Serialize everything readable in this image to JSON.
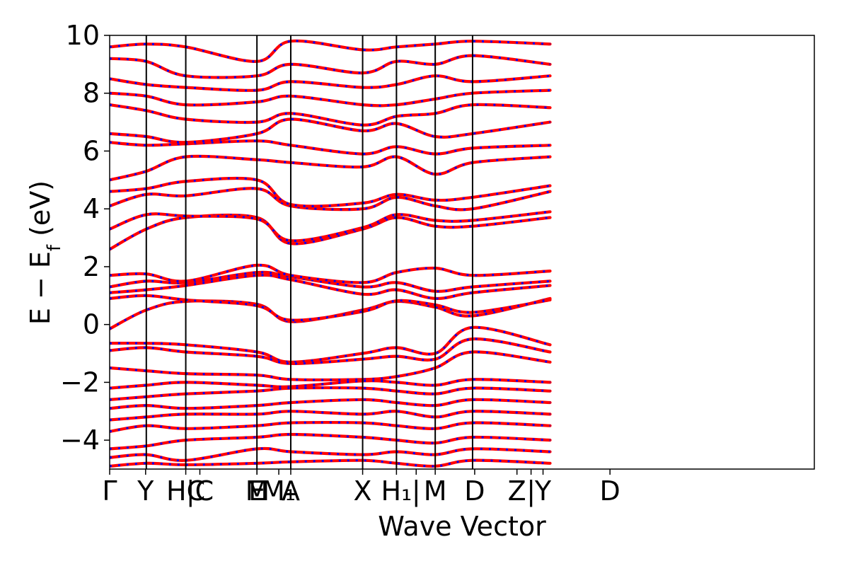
{
  "chart_data": {
    "type": "line",
    "title": "",
    "xlabel": "Wave Vector",
    "ylabel_main": "E − E",
    "ylabel_sub": "f",
    "ylabel_unit": " (eV)",
    "ylim": [
      -5,
      10
    ],
    "yticks": [
      -4,
      -2,
      0,
      2,
      4,
      6,
      8,
      10
    ],
    "ytick_labels": [
      "−4",
      "−2",
      "0",
      "2",
      "4",
      "6",
      "8",
      "10"
    ],
    "grid": false,
    "x_range": [
      0,
      1
    ],
    "kpath_ticks": [
      {
        "x": 0.0,
        "label": "Γ"
      },
      {
        "x": 0.051,
        "label": "Y"
      },
      {
        "x": 0.108,
        "label": "HC"
      },
      {
        "x": 0.128,
        "label": "|C"
      },
      {
        "x": 0.209,
        "label": "E"
      },
      {
        "x": 0.209,
        "label": "M"
      },
      {
        "x": 0.24,
        "label": "M₁"
      },
      {
        "x": 0.257,
        "label": "A"
      },
      {
        "x": 0.359,
        "label": "X"
      },
      {
        "x": 0.407,
        "label": "H₁"
      },
      {
        "x": 0.435,
        "label": "|"
      },
      {
        "x": 0.462,
        "label": "M"
      },
      {
        "x": 0.518,
        "label": "D"
      },
      {
        "x": 0.578,
        "label": "Z"
      },
      {
        "x": 0.598,
        "label": "|"
      },
      {
        "x": 0.615,
        "label": "Y"
      },
      {
        "x": 0.71,
        "label": "D"
      }
    ],
    "kpath_vlines": [
      0.052,
      0.108,
      0.209,
      0.257,
      0.359,
      0.407,
      0.462,
      0.515
    ],
    "series": [
      {
        "color": "#ff0000",
        "style": "solid"
      },
      {
        "color": "#0000ff",
        "style": "dotted"
      }
    ],
    "bands": [
      {
        "x": [
          0,
          0.052,
          0.108,
          0.209,
          0.257,
          0.359,
          0.407,
          0.462,
          0.515,
          0.625
        ],
        "y": [
          -0.15,
          0.5,
          0.8,
          0.7,
          0.1,
          0.5,
          0.8,
          0.6,
          0.3,
          0.9
        ]
      },
      {
        "x": [
          0,
          0.052,
          0.108,
          0.209,
          0.257,
          0.359,
          0.407,
          0.462,
          0.515,
          0.625
        ],
        "y": [
          0.9,
          1.0,
          0.85,
          0.65,
          0.15,
          0.45,
          0.82,
          0.68,
          0.42,
          0.85
        ]
      },
      {
        "x": [
          0,
          0.052,
          0.108,
          0.209,
          0.257,
          0.359,
          0.407,
          0.462,
          0.515,
          0.625
        ],
        "y": [
          1.1,
          1.2,
          1.35,
          1.7,
          1.55,
          1.05,
          1.2,
          0.9,
          1.1,
          1.35
        ]
      },
      {
        "x": [
          0,
          0.052,
          0.108,
          0.209,
          0.257,
          0.359,
          0.407,
          0.462,
          0.515,
          0.625
        ],
        "y": [
          1.3,
          1.5,
          1.45,
          1.8,
          1.65,
          1.3,
          1.45,
          1.15,
          1.3,
          1.5
        ]
      },
      {
        "x": [
          0,
          0.052,
          0.108,
          0.209,
          0.257,
          0.359,
          0.407,
          0.462,
          0.515,
          0.625
        ],
        "y": [
          1.7,
          1.75,
          1.5,
          2.05,
          1.7,
          1.45,
          1.8,
          1.95,
          1.7,
          1.85
        ]
      },
      {
        "x": [
          0,
          0.052,
          0.108,
          0.209,
          0.257,
          0.359,
          0.407,
          0.462,
          0.515,
          0.625
        ],
        "y": [
          2.6,
          3.3,
          3.7,
          3.7,
          2.8,
          3.3,
          3.7,
          3.4,
          3.4,
          3.7
        ]
      },
      {
        "x": [
          0,
          0.052,
          0.108,
          0.209,
          0.257,
          0.359,
          0.407,
          0.462,
          0.515,
          0.625
        ],
        "y": [
          3.3,
          3.8,
          3.75,
          3.65,
          2.9,
          3.35,
          3.8,
          3.6,
          3.6,
          3.9
        ]
      },
      {
        "x": [
          0,
          0.052,
          0.108,
          0.209,
          0.257,
          0.359,
          0.407,
          0.462,
          0.515,
          0.625
        ],
        "y": [
          4.1,
          4.5,
          4.45,
          4.7,
          4.1,
          4.0,
          4.4,
          4.1,
          4.0,
          4.6
        ]
      },
      {
        "x": [
          0,
          0.052,
          0.108,
          0.209,
          0.257,
          0.359,
          0.407,
          0.462,
          0.515,
          0.625
        ],
        "y": [
          4.6,
          4.7,
          4.95,
          5.0,
          4.15,
          4.2,
          4.5,
          4.3,
          4.4,
          4.8
        ]
      },
      {
        "x": [
          0,
          0.052,
          0.108,
          0.209,
          0.257,
          0.359,
          0.407,
          0.462,
          0.515,
          0.625
        ],
        "y": [
          5.0,
          5.3,
          5.8,
          5.7,
          5.6,
          5.45,
          5.8,
          5.2,
          5.6,
          5.8
        ]
      },
      {
        "x": [
          0,
          0.052,
          0.108,
          0.209,
          0.257,
          0.359,
          0.407,
          0.462,
          0.515,
          0.625
        ],
        "y": [
          6.3,
          6.2,
          6.25,
          6.35,
          6.2,
          5.9,
          6.15,
          5.9,
          6.1,
          6.2
        ]
      },
      {
        "x": [
          0,
          0.052,
          0.108,
          0.209,
          0.257,
          0.359,
          0.407,
          0.462,
          0.515,
          0.625
        ],
        "y": [
          6.6,
          6.5,
          6.3,
          6.6,
          7.1,
          6.7,
          6.95,
          6.5,
          6.6,
          7.0
        ]
      },
      {
        "x": [
          0,
          0.052,
          0.108,
          0.209,
          0.257,
          0.359,
          0.407,
          0.462,
          0.515,
          0.625
        ],
        "y": [
          7.6,
          7.4,
          7.1,
          7.0,
          7.3,
          6.9,
          7.2,
          7.3,
          7.6,
          7.5
        ]
      },
      {
        "x": [
          0,
          0.052,
          0.108,
          0.209,
          0.257,
          0.359,
          0.407,
          0.462,
          0.515,
          0.625
        ],
        "y": [
          8.0,
          7.9,
          7.6,
          7.7,
          7.9,
          7.6,
          7.6,
          7.8,
          8.0,
          8.1
        ]
      },
      {
        "x": [
          0,
          0.052,
          0.108,
          0.209,
          0.257,
          0.359,
          0.407,
          0.462,
          0.515,
          0.625
        ],
        "y": [
          8.5,
          8.3,
          8.2,
          8.1,
          8.4,
          8.2,
          8.3,
          8.6,
          8.4,
          8.6
        ]
      },
      {
        "x": [
          0,
          0.052,
          0.108,
          0.209,
          0.257,
          0.359,
          0.407,
          0.462,
          0.515,
          0.625
        ],
        "y": [
          9.2,
          9.1,
          8.6,
          8.6,
          9.0,
          8.7,
          9.1,
          9.0,
          9.3,
          9.0
        ]
      },
      {
        "x": [
          0,
          0.052,
          0.108,
          0.209,
          0.257,
          0.359,
          0.407,
          0.462,
          0.515,
          0.625
        ],
        "y": [
          9.6,
          9.7,
          9.6,
          9.1,
          9.8,
          9.5,
          9.6,
          9.7,
          9.8,
          9.7
        ]
      },
      {
        "x": [
          0,
          0.052,
          0.108,
          0.209,
          0.257,
          0.359,
          0.407,
          0.462,
          0.515,
          0.625
        ],
        "y": [
          -0.65,
          -0.65,
          -0.7,
          -0.95,
          -1.3,
          -1.0,
          -0.8,
          -1.0,
          -0.1,
          -0.7
        ]
      },
      {
        "x": [
          0,
          0.052,
          0.108,
          0.209,
          0.257,
          0.359,
          0.407,
          0.462,
          0.515,
          0.625
        ],
        "y": [
          -0.9,
          -0.8,
          -0.95,
          -1.1,
          -1.35,
          -1.2,
          -1.1,
          -1.2,
          -0.5,
          -0.95
        ]
      },
      {
        "x": [
          0,
          0.052,
          0.108,
          0.209,
          0.257,
          0.359,
          0.407,
          0.462,
          0.515,
          0.625
        ],
        "y": [
          -1.5,
          -1.6,
          -1.7,
          -1.75,
          -1.9,
          -1.9,
          -1.8,
          -1.5,
          -0.95,
          -1.3
        ]
      },
      {
        "x": [
          0,
          0.052,
          0.108,
          0.209,
          0.257,
          0.359,
          0.407,
          0.462,
          0.515,
          0.625
        ],
        "y": [
          -2.2,
          -2.1,
          -2.0,
          -2.1,
          -2.15,
          -1.95,
          -2.0,
          -2.1,
          -1.9,
          -2.0
        ]
      },
      {
        "x": [
          0,
          0.052,
          0.108,
          0.209,
          0.257,
          0.359,
          0.407,
          0.462,
          0.515,
          0.625
        ],
        "y": [
          -2.6,
          -2.5,
          -2.4,
          -2.3,
          -2.2,
          -2.2,
          -2.3,
          -2.4,
          -2.2,
          -2.3
        ]
      },
      {
        "x": [
          0,
          0.052,
          0.108,
          0.209,
          0.257,
          0.359,
          0.407,
          0.462,
          0.515,
          0.625
        ],
        "y": [
          -2.9,
          -2.8,
          -2.9,
          -2.8,
          -2.7,
          -2.6,
          -2.7,
          -2.8,
          -2.6,
          -2.7
        ]
      },
      {
        "x": [
          0,
          0.052,
          0.108,
          0.209,
          0.257,
          0.359,
          0.407,
          0.462,
          0.515,
          0.625
        ],
        "y": [
          -3.3,
          -3.2,
          -3.1,
          -3.1,
          -3.0,
          -3.1,
          -3.0,
          -3.2,
          -3.0,
          -3.1
        ]
      },
      {
        "x": [
          0,
          0.052,
          0.108,
          0.209,
          0.257,
          0.359,
          0.407,
          0.462,
          0.515,
          0.625
        ],
        "y": [
          -3.7,
          -3.5,
          -3.6,
          -3.5,
          -3.4,
          -3.4,
          -3.5,
          -3.6,
          -3.4,
          -3.5
        ]
      },
      {
        "x": [
          0,
          0.052,
          0.108,
          0.209,
          0.257,
          0.359,
          0.407,
          0.462,
          0.515,
          0.625
        ],
        "y": [
          -4.3,
          -4.2,
          -4.0,
          -3.9,
          -3.8,
          -3.9,
          -4.0,
          -4.1,
          -3.9,
          -4.0
        ]
      },
      {
        "x": [
          0,
          0.052,
          0.108,
          0.209,
          0.257,
          0.359,
          0.407,
          0.462,
          0.515,
          0.625
        ],
        "y": [
          -4.6,
          -4.5,
          -4.7,
          -4.3,
          -4.4,
          -4.5,
          -4.4,
          -4.5,
          -4.3,
          -4.4
        ]
      },
      {
        "x": [
          0,
          0.052,
          0.108,
          0.209,
          0.257,
          0.359,
          0.407,
          0.462,
          0.515,
          0.625
        ],
        "y": [
          -4.9,
          -4.8,
          -4.85,
          -4.8,
          -4.75,
          -4.7,
          -4.8,
          -4.9,
          -4.7,
          -4.8
        ]
      }
    ]
  }
}
